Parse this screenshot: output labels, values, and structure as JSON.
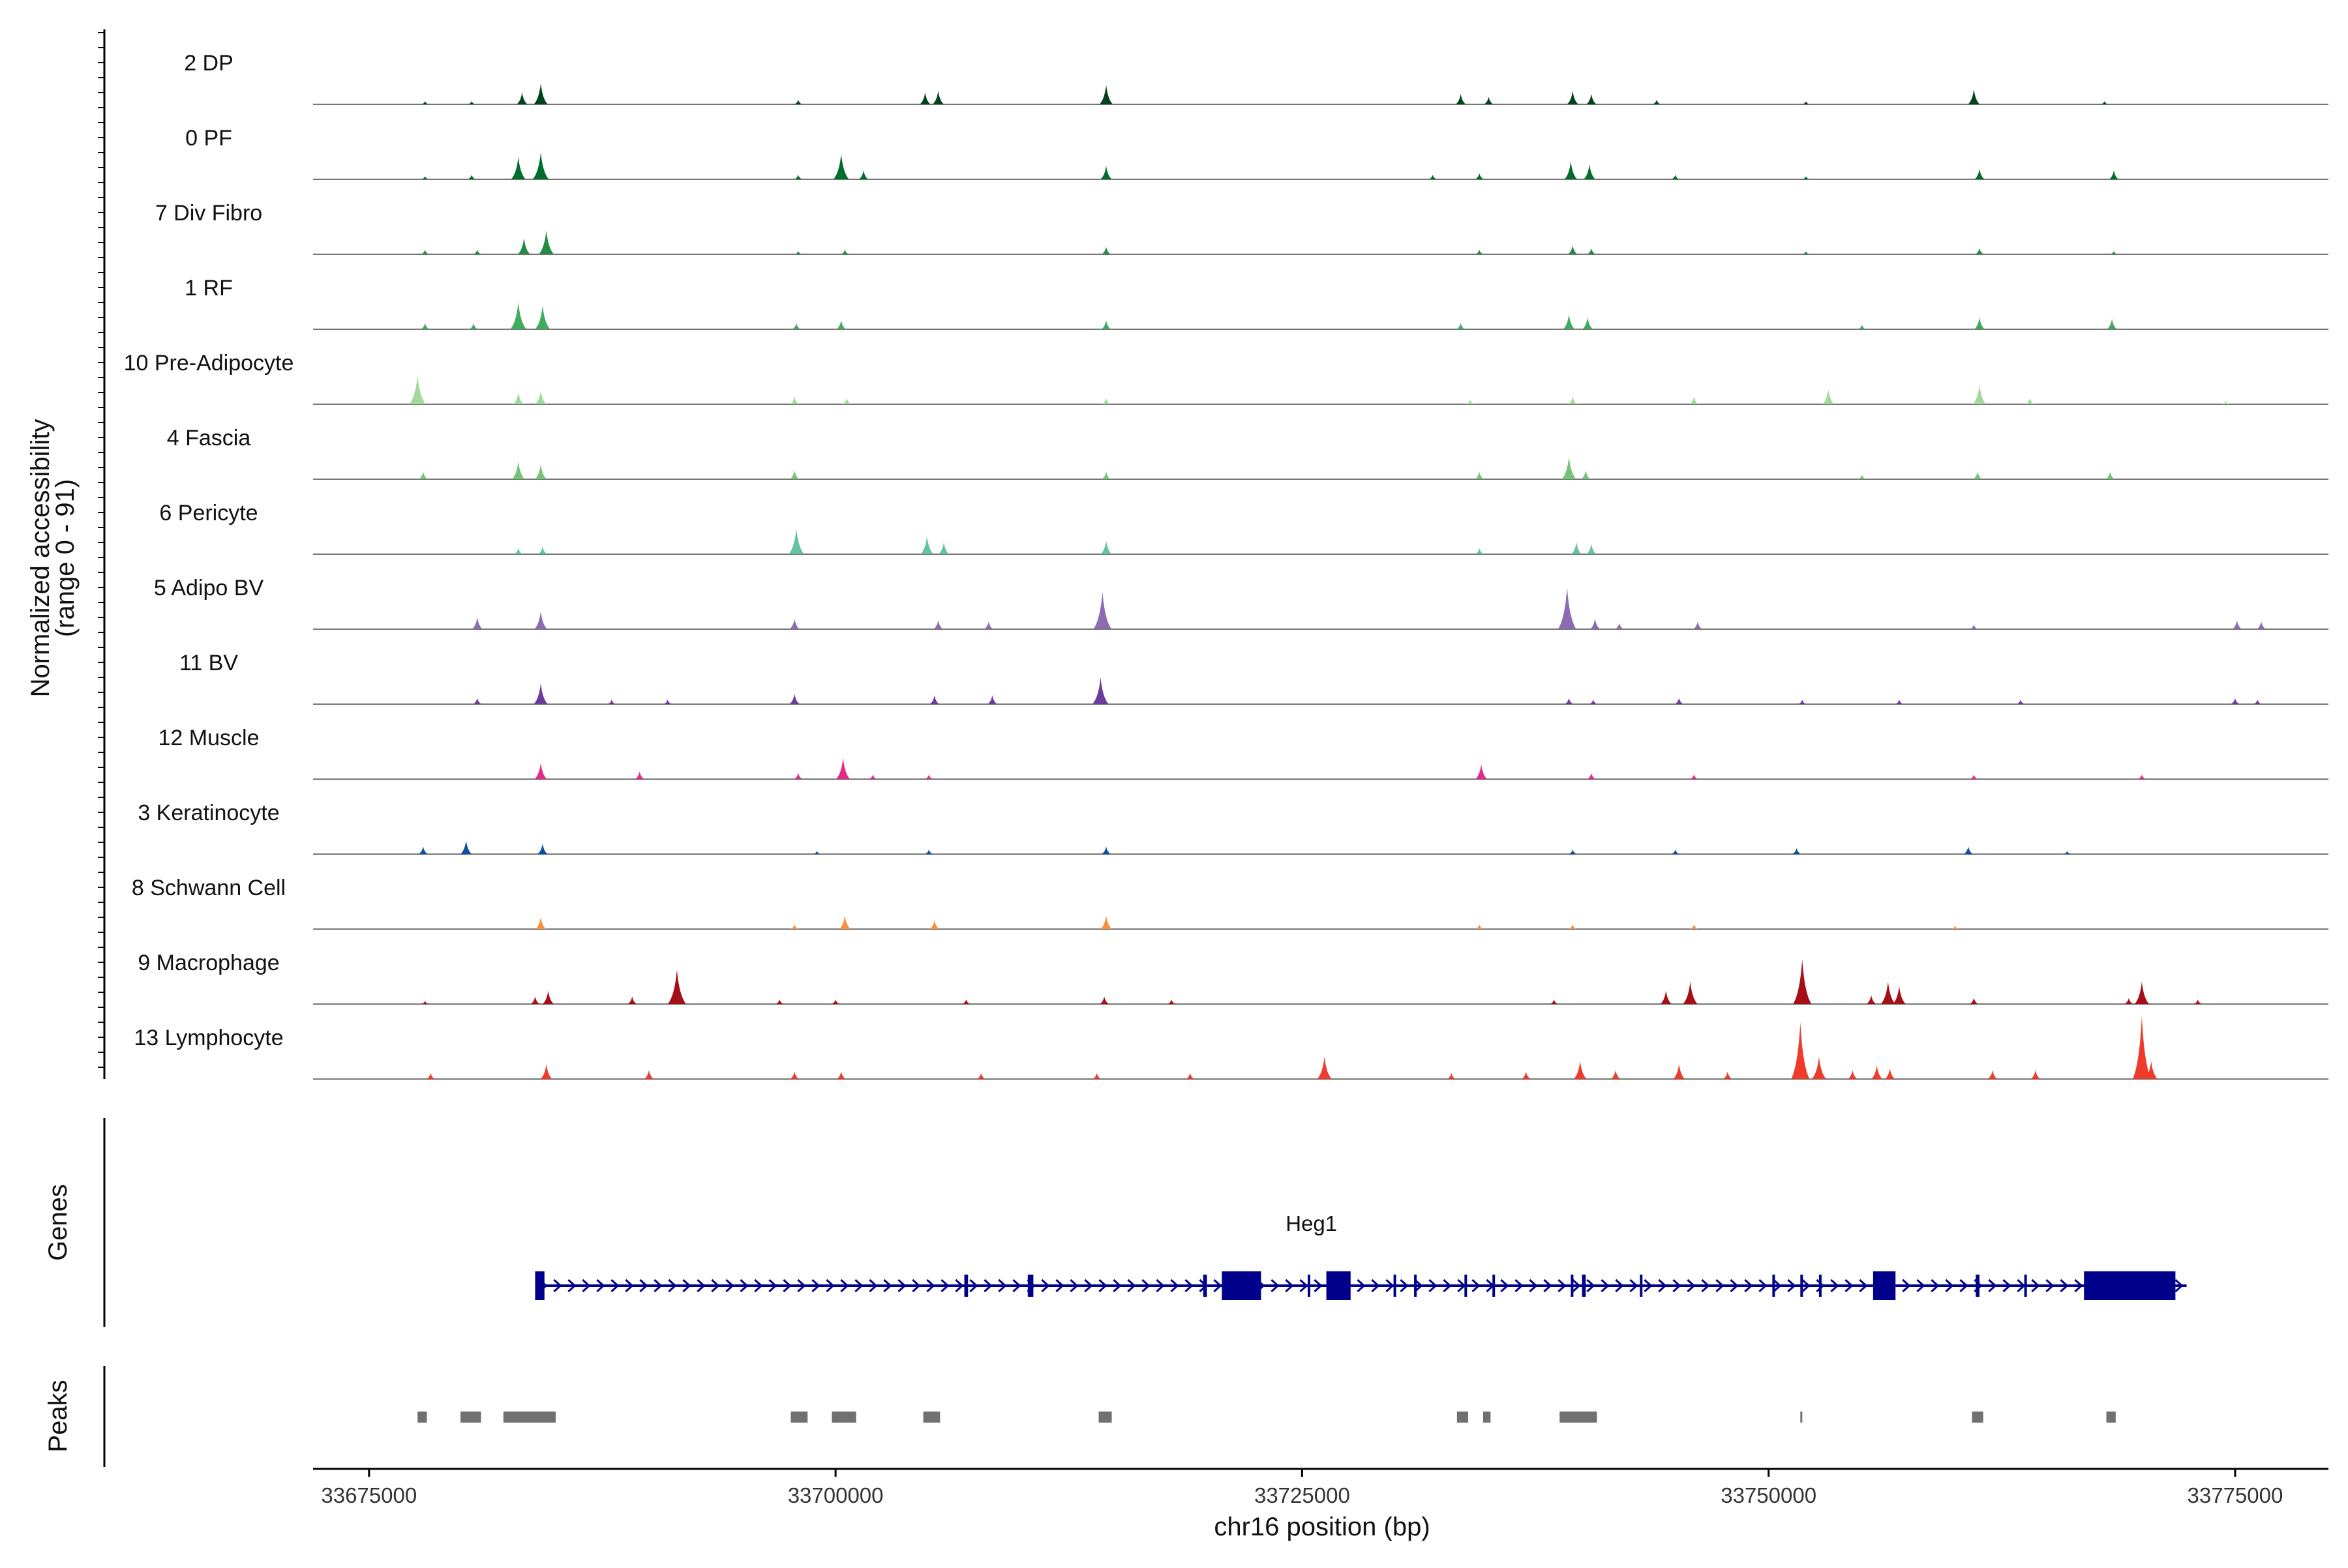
{
  "chart_data": {
    "type": "area",
    "title": "",
    "chromosome": "chr16",
    "xlabel": "chr16 position (bp)",
    "ylabel": [
      "Normalized accessibility",
      "(range 0 - 91)"
    ],
    "yrange": [
      0,
      91
    ],
    "xlim": [
      33672000,
      33780000
    ],
    "xticks": [
      33675000,
      33700000,
      33725000,
      33750000,
      33775000
    ],
    "xtick_labels": [
      "33675000",
      "33700000",
      "33725000",
      "33750000",
      "33775000"
    ],
    "section_labels": {
      "genes": "Genes",
      "peaks": "Peaks"
    },
    "tracks": [
      {
        "name": "2 DP",
        "color": "#00441b",
        "peaks": [
          [
            33678000,
            2
          ],
          [
            33680500,
            2
          ],
          [
            33683200,
            8
          ],
          [
            33684200,
            14
          ],
          [
            33698000,
            3
          ],
          [
            33704800,
            8
          ],
          [
            33705500,
            9
          ],
          [
            33714500,
            13
          ],
          [
            33733500,
            7
          ],
          [
            33735000,
            5
          ],
          [
            33739500,
            9
          ],
          [
            33740500,
            7
          ],
          [
            33744000,
            3
          ],
          [
            33752000,
            2
          ],
          [
            33761000,
            10
          ],
          [
            33768000,
            2
          ]
        ]
      },
      {
        "name": "0 PF",
        "color": "#006d2c",
        "peaks": [
          [
            33678000,
            2
          ],
          [
            33680500,
            3
          ],
          [
            33683000,
            15
          ],
          [
            33684200,
            18
          ],
          [
            33698000,
            3
          ],
          [
            33700300,
            17
          ],
          [
            33701500,
            6
          ],
          [
            33714500,
            9
          ],
          [
            33732000,
            3
          ],
          [
            33734500,
            4
          ],
          [
            33739400,
            12
          ],
          [
            33740400,
            10
          ],
          [
            33745000,
            3
          ],
          [
            33752000,
            2
          ],
          [
            33761300,
            7
          ],
          [
            33768500,
            6
          ]
        ]
      },
      {
        "name": "7 Div Fibro",
        "color": "#238b45",
        "peaks": [
          [
            33678000,
            3
          ],
          [
            33680800,
            3
          ],
          [
            33683300,
            11
          ],
          [
            33684500,
            16
          ],
          [
            33698000,
            2
          ],
          [
            33700500,
            3
          ],
          [
            33714500,
            5
          ],
          [
            33734500,
            3
          ],
          [
            33739500,
            6
          ],
          [
            33740500,
            4
          ],
          [
            33752000,
            2
          ],
          [
            33761300,
            4
          ],
          [
            33768500,
            2
          ]
        ]
      },
      {
        "name": "1 RF",
        "color": "#41ab5d",
        "peaks": [
          [
            33678000,
            4
          ],
          [
            33680600,
            4
          ],
          [
            33683000,
            18
          ],
          [
            33684300,
            16
          ],
          [
            33697900,
            4
          ],
          [
            33700300,
            6
          ],
          [
            33714500,
            6
          ],
          [
            33733500,
            4
          ],
          [
            33739300,
            10
          ],
          [
            33740300,
            8
          ],
          [
            33755000,
            3
          ],
          [
            33761300,
            8
          ],
          [
            33768400,
            7
          ]
        ]
      },
      {
        "name": "10 Pre-Adipocyte",
        "color": "#a1d99b",
        "peaks": [
          [
            33677600,
            19
          ],
          [
            33683000,
            8
          ],
          [
            33684200,
            9
          ],
          [
            33697800,
            5
          ],
          [
            33700600,
            4
          ],
          [
            33714500,
            4
          ],
          [
            33734000,
            3
          ],
          [
            33739500,
            5
          ],
          [
            33746000,
            5
          ],
          [
            33753200,
            10
          ],
          [
            33761300,
            13
          ],
          [
            33764000,
            4
          ],
          [
            33774500,
            2
          ]
        ]
      },
      {
        "name": "4 Fascia",
        "color": "#74c476",
        "peaks": [
          [
            33677900,
            5
          ],
          [
            33683000,
            12
          ],
          [
            33684200,
            10
          ],
          [
            33697800,
            6
          ],
          [
            33714500,
            5
          ],
          [
            33734500,
            5
          ],
          [
            33739300,
            15
          ],
          [
            33740200,
            6
          ],
          [
            33755000,
            3
          ],
          [
            33761200,
            5
          ],
          [
            33768300,
            5
          ]
        ]
      },
      {
        "name": "6 Pericyte",
        "color": "#66c2a4",
        "peaks": [
          [
            33683000,
            4
          ],
          [
            33684300,
            5
          ],
          [
            33697900,
            17
          ],
          [
            33704900,
            12
          ],
          [
            33705800,
            8
          ],
          [
            33714500,
            9
          ],
          [
            33734500,
            4
          ],
          [
            33739700,
            8
          ],
          [
            33740500,
            7
          ]
        ]
      },
      {
        "name": "5 Adipo BV",
        "color": "#8c6bb1",
        "peaks": [
          [
            33680800,
            8
          ],
          [
            33684200,
            12
          ],
          [
            33697800,
            7
          ],
          [
            33705500,
            6
          ],
          [
            33708200,
            5
          ],
          [
            33714300,
            25
          ],
          [
            33739200,
            28
          ],
          [
            33740700,
            7
          ],
          [
            33742000,
            4
          ],
          [
            33746200,
            5
          ],
          [
            33761000,
            3
          ],
          [
            33775100,
            6
          ],
          [
            33776400,
            5
          ]
        ]
      },
      {
        "name": "11 BV",
        "color": "#6a3d9a",
        "peaks": [
          [
            33680800,
            4
          ],
          [
            33684200,
            14
          ],
          [
            33688000,
            3
          ],
          [
            33691000,
            3
          ],
          [
            33697800,
            7
          ],
          [
            33705300,
            6
          ],
          [
            33708400,
            6
          ],
          [
            33714200,
            18
          ],
          [
            33739300,
            4
          ],
          [
            33740600,
            3
          ],
          [
            33745200,
            4
          ],
          [
            33751800,
            3
          ],
          [
            33757000,
            3
          ],
          [
            33763500,
            3
          ],
          [
            33775000,
            4
          ],
          [
            33776200,
            3
          ]
        ]
      },
      {
        "name": "12 Muscle",
        "color": "#e7298a",
        "peaks": [
          [
            33684200,
            11
          ],
          [
            33689500,
            5
          ],
          [
            33698000,
            4
          ],
          [
            33700400,
            14
          ],
          [
            33702000,
            3
          ],
          [
            33705000,
            3
          ],
          [
            33734600,
            10
          ],
          [
            33740500,
            4
          ],
          [
            33746000,
            3
          ],
          [
            33761000,
            3
          ],
          [
            33770000,
            3
          ]
        ]
      },
      {
        "name": "3 Keratinocyte",
        "color": "#08519c",
        "peaks": [
          [
            33677900,
            5
          ],
          [
            33680200,
            9
          ],
          [
            33684300,
            7
          ],
          [
            33699000,
            2
          ],
          [
            33705000,
            3
          ],
          [
            33714500,
            5
          ],
          [
            33739500,
            3
          ],
          [
            33745000,
            3
          ],
          [
            33751500,
            4
          ],
          [
            33760700,
            5
          ],
          [
            33766000,
            2
          ]
        ]
      },
      {
        "name": "8 Schwann Cell",
        "color": "#fd8d3c",
        "peaks": [
          [
            33684200,
            8
          ],
          [
            33697800,
            3
          ],
          [
            33700500,
            9
          ],
          [
            33705300,
            6
          ],
          [
            33714500,
            9
          ],
          [
            33734500,
            3
          ],
          [
            33739500,
            3
          ],
          [
            33746000,
            3
          ],
          [
            33760000,
            2
          ]
        ]
      },
      {
        "name": "9 Macrophage",
        "color": "#a50f15",
        "peaks": [
          [
            33678000,
            2
          ],
          [
            33683900,
            5
          ],
          [
            33684600,
            9
          ],
          [
            33689100,
            5
          ],
          [
            33691500,
            23
          ],
          [
            33697000,
            3
          ],
          [
            33700000,
            3
          ],
          [
            33707000,
            3
          ],
          [
            33714400,
            5
          ],
          [
            33718000,
            3
          ],
          [
            33738500,
            3
          ],
          [
            33744500,
            9
          ],
          [
            33745800,
            15
          ],
          [
            33751800,
            30
          ],
          [
            33755500,
            6
          ],
          [
            33756400,
            15
          ],
          [
            33757000,
            12
          ],
          [
            33761000,
            4
          ],
          [
            33769300,
            4
          ],
          [
            33770000,
            15
          ],
          [
            33773000,
            3
          ]
        ]
      },
      {
        "name": "13 Lymphocyte",
        "color": "#ef3b2c",
        "peaks": [
          [
            33678300,
            4
          ],
          [
            33684500,
            10
          ],
          [
            33690000,
            6
          ],
          [
            33697800,
            5
          ],
          [
            33700300,
            5
          ],
          [
            33707800,
            4
          ],
          [
            33714000,
            4
          ],
          [
            33719000,
            4
          ],
          [
            33726200,
            15
          ],
          [
            33733000,
            4
          ],
          [
            33737000,
            5
          ],
          [
            33739900,
            12
          ],
          [
            33741800,
            6
          ],
          [
            33745200,
            10
          ],
          [
            33747800,
            5
          ],
          [
            33751700,
            38
          ],
          [
            33752700,
            15
          ],
          [
            33754500,
            6
          ],
          [
            33755800,
            9
          ],
          [
            33756500,
            7
          ],
          [
            33762000,
            6
          ],
          [
            33764300,
            6
          ],
          [
            33770000,
            42
          ],
          [
            33770500,
            12
          ]
        ]
      }
    ],
    "gene": {
      "name": "Heg1",
      "strand": "+",
      "start": 33684000,
      "end": 33772400,
      "exons": [
        [
          33683900,
          33684400
        ],
        [
          33706900,
          33707100
        ],
        [
          33710300,
          33710600
        ],
        [
          33719700,
          33719900
        ],
        [
          33720700,
          33722800
        ],
        [
          33725300,
          33725400
        ],
        [
          33726300,
          33727600
        ],
        [
          33729900,
          33730000
        ],
        [
          33731000,
          33731100
        ],
        [
          33733700,
          33733800
        ],
        [
          33735200,
          33735300
        ],
        [
          33739400,
          33739500
        ],
        [
          33740000,
          33740200
        ],
        [
          33743100,
          33743200
        ],
        [
          33750200,
          33750300
        ],
        [
          33751700,
          33751800
        ],
        [
          33752700,
          33752800
        ],
        [
          33755600,
          33756800
        ],
        [
          33761100,
          33761300
        ],
        [
          33763700,
          33763800
        ],
        [
          33766900,
          33771800
        ]
      ]
    },
    "peak_regions": [
      [
        33677600,
        33678100
      ],
      [
        33679900,
        33681000
      ],
      [
        33682200,
        33685000
      ],
      [
        33697600,
        33698500
      ],
      [
        33699800,
        33701100
      ],
      [
        33704700,
        33705600
      ],
      [
        33714100,
        33714800
      ],
      [
        33733300,
        33733900
      ],
      [
        33734700,
        33735100
      ],
      [
        33738800,
        33740800
      ],
      [
        33751700,
        33751800
      ],
      [
        33760900,
        33761500
      ],
      [
        33768100,
        33768600
      ]
    ]
  }
}
